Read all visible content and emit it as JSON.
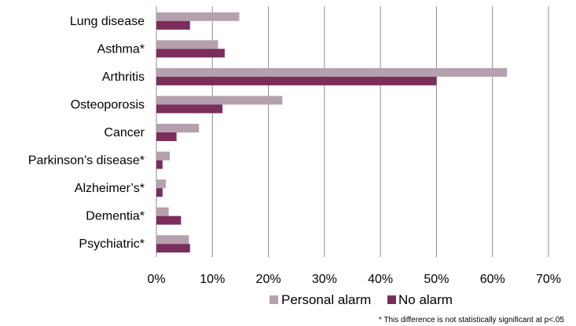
{
  "chart_data": {
    "type": "bar",
    "orientation": "horizontal",
    "categories": [
      "Lung disease",
      "Asthma*",
      "Arthritis",
      "Osteoporosis",
      "Cancer",
      "Parkinson’s disease*",
      "Alzheimer’s*",
      "Dementia*",
      "Psychiatric*"
    ],
    "series": [
      {
        "name": "Personal alarm",
        "color": "#b5a0ad",
        "values": [
          14.8,
          11.0,
          62.6,
          22.5,
          7.6,
          2.4,
          1.7,
          2.2,
          5.8
        ]
      },
      {
        "name": "No alarm",
        "color": "#7b2d5c",
        "values": [
          6.0,
          12.2,
          50.0,
          11.8,
          3.6,
          1.1,
          1.1,
          4.4,
          6.0
        ]
      }
    ],
    "xlim": [
      0,
      0.7
    ],
    "ticks": [
      "0%",
      "10%",
      "20%",
      "30%",
      "40%",
      "50%",
      "60%",
      "70%"
    ],
    "grid": true,
    "legend_position": "bottom",
    "footnote": "* This difference is not statistically significant at p<.05"
  }
}
